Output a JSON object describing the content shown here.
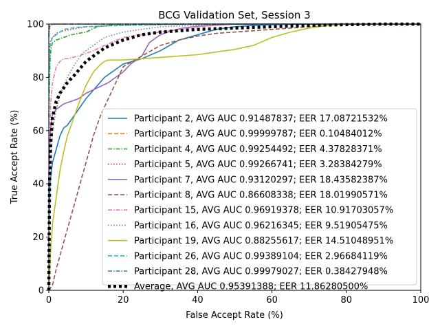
{
  "chart_data": {
    "type": "line",
    "title": "BCG Validation Set, Session 3",
    "xlabel": "False Accept Rate (%)",
    "ylabel": "True Accept Rate (%)",
    "xlim": [
      0,
      100
    ],
    "ylim": [
      0,
      100
    ],
    "xticks": [
      0,
      20,
      40,
      60,
      80,
      100
    ],
    "yticks": [
      0,
      20,
      40,
      60,
      80,
      100
    ],
    "grid": false,
    "legend_position": "lower-right",
    "series": [
      {
        "name": "Participant 2, AVG AUC 0.91487837; EER 17.08721532%",
        "color": "#1f77b4",
        "dash": "solid",
        "x": [
          0,
          0.3,
          1,
          2,
          3,
          4,
          5,
          7,
          10,
          15,
          20,
          25,
          30,
          35,
          40,
          45,
          50,
          55,
          60,
          70,
          80,
          100
        ],
        "y": [
          25,
          40,
          48,
          53,
          58,
          61,
          62,
          66,
          72,
          80,
          85,
          87,
          90,
          94,
          96,
          98,
          99,
          99.5,
          99.8,
          100,
          100,
          100
        ]
      },
      {
        "name": "Participant 3, AVG AUC 0.99999787; EER 0.10484012%",
        "color": "#ff7f0e",
        "dash": "dashed",
        "x": [
          0,
          0.1,
          0.2,
          0.5,
          100
        ],
        "y": [
          96,
          99.9,
          100,
          100,
          100
        ]
      },
      {
        "name": "Participant 4, AVG AUC 0.99254492; EER 4.37828371%",
        "color": "#2ca02c",
        "dash": "dashdot",
        "x": [
          0,
          0.3,
          0.6,
          1,
          2,
          4,
          6,
          8,
          10,
          13,
          16,
          20,
          30,
          50,
          100
        ],
        "y": [
          65,
          85,
          91,
          93,
          94,
          95,
          96,
          96.5,
          97,
          99,
          99.5,
          100,
          100,
          100,
          100
        ]
      },
      {
        "name": "Participant 5, AVG AUC 0.99266741; EER 3.28384279%",
        "color": "#d62728",
        "dash": "dotted",
        "x": [
          0,
          0.2,
          0.5,
          1,
          2,
          4,
          6,
          10,
          20,
          40,
          100
        ],
        "y": [
          80,
          92,
          94,
          95,
          96.5,
          97.5,
          98,
          99,
          99.5,
          100,
          100
        ]
      },
      {
        "name": "Participant 7, AVG AUC 0.93120297; EER 18.43582387%",
        "color": "#9467bd",
        "dash": "solid",
        "x": [
          0,
          0.3,
          0.6,
          1,
          2,
          4,
          6,
          8,
          10,
          13,
          16,
          20,
          22,
          25,
          27,
          28,
          30,
          33,
          36,
          40,
          45,
          50,
          100
        ],
        "y": [
          40,
          55,
          62,
          66,
          68,
          70,
          71,
          72,
          74,
          76,
          78,
          82,
          85,
          88,
          93,
          94,
          96,
          97.5,
          98.5,
          99.2,
          99.6,
          100,
          100
        ]
      },
      {
        "name": "Participant 8, AVG AUC 0.86608338; EER 18.01990571%",
        "color": "#8c564b",
        "dash": "dashed",
        "x": [
          0,
          1,
          2,
          4,
          6,
          8,
          10,
          12,
          14,
          16,
          18,
          20,
          25,
          30,
          35,
          40,
          45,
          50,
          55,
          60,
          65,
          70,
          75,
          80,
          100
        ],
        "y": [
          0,
          2,
          8,
          18,
          28,
          38,
          48,
          58,
          66,
          72,
          78,
          84,
          88,
          92,
          94,
          95.5,
          96.5,
          97,
          97.5,
          98,
          98.5,
          99,
          99.5,
          100,
          100
        ]
      },
      {
        "name": "Participant 15, AVG AUC 0.96919378; EER 10.91703057%",
        "color": "#e377c2",
        "dash": "dashdot",
        "x": [
          0,
          0.5,
          1,
          2,
          3,
          4,
          5,
          8,
          10,
          12,
          15,
          20,
          30,
          40,
          50,
          100
        ],
        "y": [
          50,
          70,
          78,
          84,
          86,
          87,
          87,
          88,
          89,
          90,
          92,
          95,
          97,
          99,
          100,
          100
        ]
      },
      {
        "name": "Participant 16, AVG AUC 0.96216345; EER 9.51905475%",
        "color": "#7f7f7f",
        "dash": "dotted",
        "x": [
          0,
          0.3,
          0.6,
          1,
          2,
          3,
          4,
          5,
          7,
          9,
          11,
          13,
          15,
          20,
          25,
          30,
          40,
          50,
          100
        ],
        "y": [
          0,
          30,
          50,
          60,
          68,
          73,
          77,
          80,
          85,
          89,
          91,
          93,
          95,
          97,
          98,
          99,
          99.5,
          100,
          100
        ]
      },
      {
        "name": "Participant 19, AVG AUC 0.88255617; EER 14.51048951%",
        "color": "#bcbd22",
        "dash": "solid",
        "x": [
          0,
          0.5,
          1,
          2,
          3,
          4,
          5,
          6,
          7,
          8,
          10,
          12,
          14,
          15,
          16,
          20,
          25,
          30,
          35,
          40,
          45,
          50,
          55,
          60,
          65,
          70,
          75,
          80,
          100
        ],
        "y": [
          0,
          15,
          25,
          35,
          45,
          52,
          58,
          62,
          66,
          70,
          77,
          82,
          85,
          86,
          86.5,
          86.5,
          87,
          87.5,
          88,
          88.5,
          89.5,
          90.5,
          92,
          95,
          97,
          98.5,
          99.5,
          100,
          100
        ]
      },
      {
        "name": "Participant 26, AVG AUC 0.99389104; EER 2.96684119%",
        "color": "#17becf",
        "dash": "dashed",
        "x": [
          0,
          0.2,
          0.5,
          1,
          2,
          3,
          4,
          5,
          6,
          8,
          10,
          15,
          20,
          30,
          40,
          100
        ],
        "y": [
          75,
          90,
          93,
          95,
          96,
          97,
          98,
          98.2,
          98.5,
          98.8,
          99,
          99.3,
          99.5,
          99.8,
          100,
          100
        ]
      },
      {
        "name": "Participant 28, AVG AUC 0.99979027; EER 0.38427948%",
        "color": "#1f77b4",
        "dash": "dashdot",
        "x": [
          0,
          0.2,
          0.5,
          1,
          2,
          100
        ],
        "y": [
          95,
          99,
          99.6,
          99.9,
          100,
          100
        ]
      },
      {
        "name": "Average, AVG AUC 0.95391388; EER 11.86280500%",
        "color": "#000000",
        "dash": "thick-dotted",
        "x": [
          0,
          0.2,
          0.5,
          1,
          2,
          3,
          5,
          7,
          10,
          12,
          15,
          20,
          25,
          30,
          35,
          40,
          50,
          60,
          70,
          80,
          90,
          100
        ],
        "y": [
          0,
          40,
          55,
          65,
          71,
          74,
          78,
          81,
          86,
          88,
          91,
          94,
          96,
          97,
          97.5,
          98,
          98.5,
          99,
          99.5,
          99.8,
          100,
          100
        ]
      }
    ]
  }
}
